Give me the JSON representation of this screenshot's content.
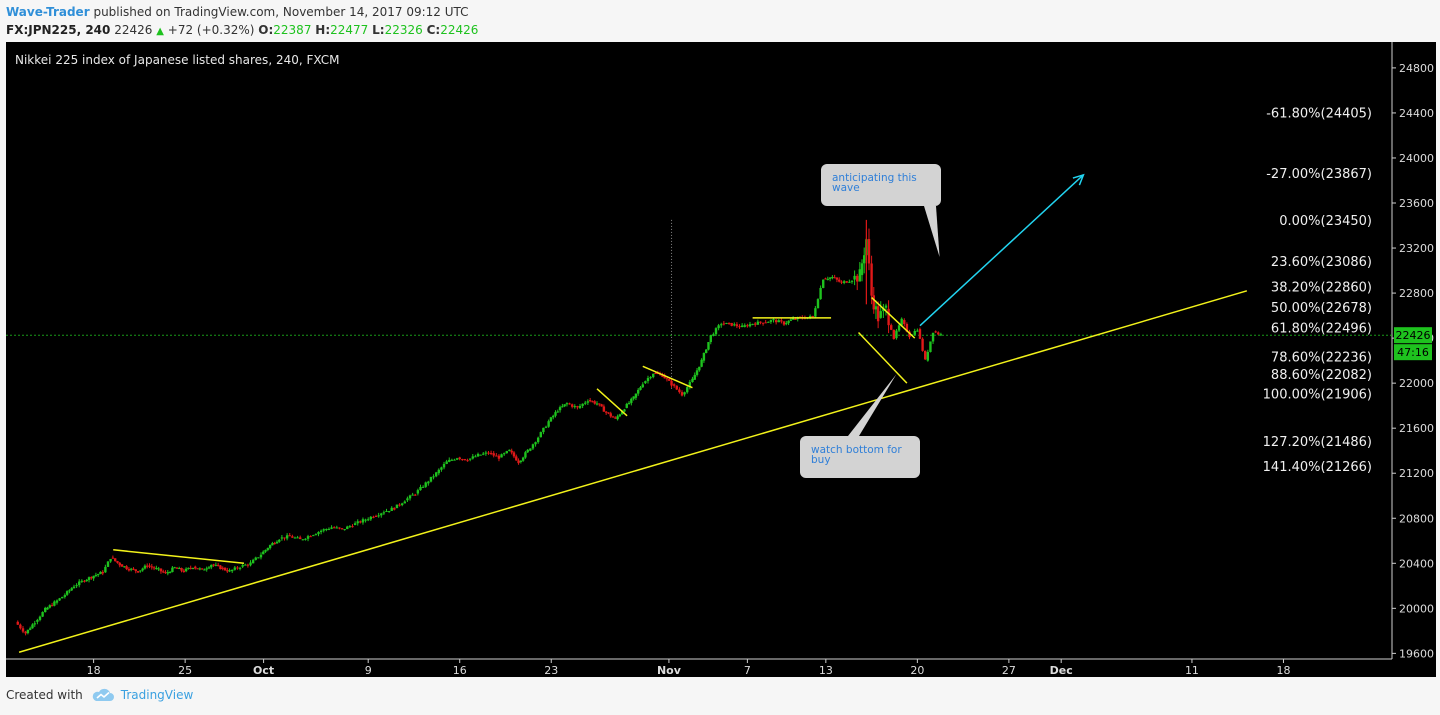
{
  "header": {
    "author": "Wave-Trader",
    "published": "published on TradingView.com, November 14, 2017 09:12 UTC",
    "symbol": "FX:JPN225, 240",
    "last": "22426",
    "change": "+72 (+0.32%)",
    "o_label": "O:",
    "o_value": "22387",
    "h_label": "H:",
    "h_value": "22477",
    "l_label": "L:",
    "l_value": "22326",
    "c_label": "C:",
    "c_value": "22426"
  },
  "footer": {
    "created": "Created with",
    "brand": "TradingView"
  },
  "colors": {
    "up": "#1ec21e",
    "down": "#e01818",
    "trend": "#f2f21a",
    "arrow": "#22d4f0",
    "price_line": "#1ec21e"
  },
  "chart_data": {
    "type": "candlestick",
    "title": "Nikkei 225 index of Japanese listed shares, 240, FXCM",
    "y_ticks": [
      19600,
      20000,
      20400,
      20800,
      21200,
      21600,
      22000,
      22400,
      22800,
      23200,
      23600,
      24000,
      24400,
      24800
    ],
    "ylim": [
      19550,
      25030
    ],
    "x_ticks": [
      {
        "label": "18",
        "day": 18
      },
      {
        "label": "25",
        "day": 25
      },
      {
        "label": "Oct",
        "day": 31
      },
      {
        "label": "9",
        "day": 39
      },
      {
        "label": "16",
        "day": 46
      },
      {
        "label": "23",
        "day": 53
      },
      {
        "label": "Nov",
        "day": 62
      },
      {
        "label": "7",
        "day": 68
      },
      {
        "label": "13",
        "day": 74
      },
      {
        "label": "20",
        "day": 81
      },
      {
        "label": "27",
        "day": 88
      },
      {
        "label": "Dec",
        "day": 92
      },
      {
        "label": "11",
        "day": 102
      },
      {
        "label": "18",
        "day": 109
      }
    ],
    "xlim": [
      11.3,
      117.3
    ],
    "current_price": {
      "value": 22426,
      "label": "22426",
      "countdown": "47:16"
    },
    "fib_levels": [
      {
        "label": "-61.80%(24405)",
        "value": 24405
      },
      {
        "label": "-27.00%(23867)",
        "value": 23867
      },
      {
        "label": "0.00%(23450)",
        "value": 23450
      },
      {
        "label": "23.60%(23086)",
        "value": 23086
      },
      {
        "label": "38.20%(22860)",
        "value": 22860
      },
      {
        "label": "50.00%(22678)",
        "value": 22678
      },
      {
        "label": "61.80%(22496)",
        "value": 22496
      },
      {
        "label": "78.60%(22236)",
        "value": 22236
      },
      {
        "label": "88.60%(22082)",
        "value": 22082
      },
      {
        "label": "100.00%(21906)",
        "value": 21906
      },
      {
        "label": "127.20%(21486)",
        "value": 21486
      },
      {
        "label": "141.40%(21266)",
        "value": 21266
      }
    ],
    "trend_lines": [
      {
        "from": [
          12.3,
          19610
        ],
        "to": [
          106.2,
          22820
        ]
      },
      {
        "from": [
          19.5,
          20520
        ],
        "to": [
          29.5,
          20400
        ]
      },
      {
        "from": [
          56.5,
          21950
        ],
        "to": [
          58.8,
          21710
        ]
      },
      {
        "from": [
          60.0,
          22150
        ],
        "to": [
          63.8,
          21960
        ]
      },
      {
        "from": [
          68.4,
          22580
        ],
        "to": [
          74.4,
          22580
        ]
      },
      {
        "from": [
          77.5,
          22760
        ],
        "to": [
          80.8,
          22400
        ]
      },
      {
        "from": [
          76.5,
          22450
        ],
        "to": [
          80.2,
          22000
        ]
      }
    ],
    "projection_arrow": {
      "from": [
        81.2,
        22510
      ],
      "to": [
        93.7,
        23850
      ]
    },
    "vertical_marker_day": 62.2,
    "annotations": [
      {
        "text": [
          "anticipating this",
          "wave"
        ],
        "anchor": [
          82.7,
          23120
        ]
      },
      {
        "text": [
          "watch bottom for",
          "buy"
        ],
        "anchor": [
          79.4,
          22080
        ]
      }
    ],
    "candles_ohlc_path": [
      [
        12.0,
        19880
      ],
      [
        12.8,
        19780
      ],
      [
        13.5,
        19880
      ],
      [
        14.3,
        19990
      ],
      [
        15.0,
        20050
      ],
      [
        15.8,
        20120
      ],
      [
        16.5,
        20200
      ],
      [
        17.3,
        20250
      ],
      [
        18.0,
        20290
      ],
      [
        18.7,
        20320
      ],
      [
        19.3,
        20450
      ],
      [
        20.0,
        20390
      ],
      [
        20.7,
        20350
      ],
      [
        21.4,
        20330
      ],
      [
        22.1,
        20380
      ],
      [
        22.8,
        20350
      ],
      [
        23.5,
        20310
      ],
      [
        24.2,
        20360
      ],
      [
        24.9,
        20330
      ],
      [
        25.6,
        20370
      ],
      [
        26.3,
        20340
      ],
      [
        27.0,
        20390
      ],
      [
        27.7,
        20360
      ],
      [
        28.4,
        20330
      ],
      [
        29.2,
        20370
      ],
      [
        30.0,
        20400
      ],
      [
        30.8,
        20480
      ],
      [
        31.5,
        20560
      ],
      [
        32.2,
        20620
      ],
      [
        33.0,
        20640
      ],
      [
        33.8,
        20610
      ],
      [
        34.6,
        20650
      ],
      [
        35.4,
        20690
      ],
      [
        36.2,
        20720
      ],
      [
        37.0,
        20700
      ],
      [
        37.8,
        20740
      ],
      [
        38.6,
        20780
      ],
      [
        39.4,
        20820
      ],
      [
        40.2,
        20860
      ],
      [
        41.0,
        20890
      ],
      [
        41.8,
        20960
      ],
      [
        42.6,
        21020
      ],
      [
        43.4,
        21110
      ],
      [
        44.2,
        21200
      ],
      [
        45.0,
        21300
      ],
      [
        45.8,
        21340
      ],
      [
        46.6,
        21320
      ],
      [
        47.4,
        21360
      ],
      [
        48.2,
        21380
      ],
      [
        49.0,
        21340
      ],
      [
        49.8,
        21400
      ],
      [
        50.5,
        21300
      ],
      [
        51.2,
        21400
      ],
      [
        52.0,
        21520
      ],
      [
        52.8,
        21660
      ],
      [
        53.5,
        21760
      ],
      [
        54.2,
        21820
      ],
      [
        55.0,
        21780
      ],
      [
        55.8,
        21850
      ],
      [
        56.5,
        21820
      ],
      [
        57.2,
        21740
      ],
      [
        57.9,
        21680
      ],
      [
        58.6,
        21780
      ],
      [
        59.3,
        21870
      ],
      [
        60.0,
        22000
      ],
      [
        60.8,
        22090
      ],
      [
        61.5,
        22070
      ],
      [
        62.2,
        21990
      ],
      [
        63.0,
        21900
      ],
      [
        63.8,
        22030
      ],
      [
        64.5,
        22200
      ],
      [
        65.2,
        22420
      ],
      [
        66.0,
        22530
      ],
      [
        66.8,
        22520
      ],
      [
        67.6,
        22500
      ],
      [
        68.4,
        22530
      ],
      [
        69.2,
        22540
      ],
      [
        70.0,
        22560
      ],
      [
        70.8,
        22530
      ],
      [
        71.5,
        22570
      ],
      [
        72.2,
        22580
      ],
      [
        73.0,
        22590
      ],
      [
        73.8,
        22930
      ],
      [
        74.5,
        22940
      ],
      [
        75.2,
        22890
      ],
      [
        76.0,
        22920
      ],
      [
        76.6,
        22960
      ],
      [
        77.1,
        23280
      ],
      [
        77.5,
        22780
      ],
      [
        78.0,
        22580
      ],
      [
        78.6,
        22660
      ],
      [
        79.2,
        22400
      ],
      [
        79.8,
        22560
      ],
      [
        80.4,
        22420
      ],
      [
        81.0,
        22480
      ],
      [
        81.6,
        22200
      ],
      [
        82.2,
        22460
      ],
      [
        82.8,
        22430
      ]
    ]
  }
}
